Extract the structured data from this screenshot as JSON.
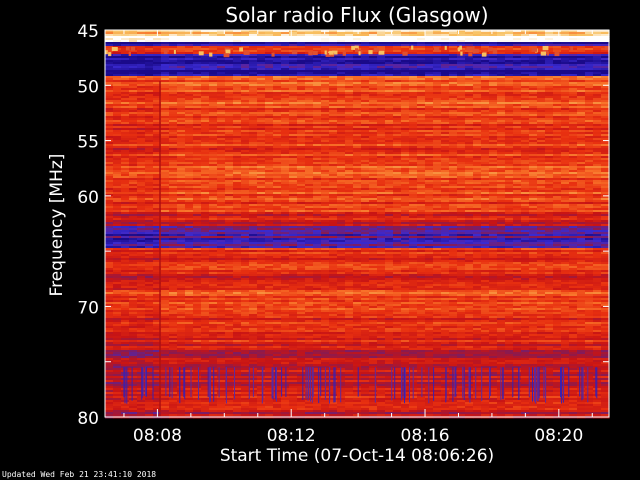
{
  "chart_data": {
    "type": "heatmap",
    "title": "Solar radio Flux (Glasgow)",
    "ylabel": "Frequency [MHz]",
    "xlabel": "Start Time (07-Oct-14 08:06:26)",
    "x_range_minutes": [
      "08:06:26",
      "08:21:30"
    ],
    "y_range_mhz": [
      45,
      80
    ],
    "y_ticks": [
      45,
      50,
      55,
      60,
      65,
      70,
      75,
      80
    ],
    "y_tick_labels": [
      "45",
      "50",
      "55",
      "60",
      "",
      "70",
      "",
      "80"
    ],
    "x_ticks": [
      "08:08",
      "08:12",
      "08:16",
      "08:20"
    ],
    "colormap": [
      "#1a0a8a",
      "#3a2ad0",
      "#8a1a50",
      "#c81414",
      "#e83010",
      "#f87028",
      "#f8c060",
      "#ffffff"
    ],
    "bands": [
      {
        "f0": 45.0,
        "f1": 45.6,
        "level": 0.88
      },
      {
        "f0": 45.6,
        "f1": 46.0,
        "level": 1.0
      },
      {
        "f0": 46.0,
        "f1": 46.4,
        "level": 0.05
      },
      {
        "f0": 46.4,
        "f1": 47.2,
        "level": 0.55
      },
      {
        "f0": 47.2,
        "f1": 48.4,
        "level": 0.08
      },
      {
        "f0": 48.4,
        "f1": 49.2,
        "level": 0.02
      },
      {
        "f0": 49.2,
        "f1": 49.6,
        "level": 0.75
      },
      {
        "f0": 49.6,
        "f1": 52.0,
        "level": 0.62
      },
      {
        "f0": 52.0,
        "f1": 56.0,
        "level": 0.58
      },
      {
        "f0": 56.0,
        "f1": 59.0,
        "level": 0.64
      },
      {
        "f0": 59.0,
        "f1": 61.5,
        "level": 0.6
      },
      {
        "f0": 61.5,
        "f1": 62.8,
        "level": 0.45
      },
      {
        "f0": 62.8,
        "f1": 64.8,
        "level": 0.18
      },
      {
        "f0": 64.8,
        "f1": 66.5,
        "level": 0.55
      },
      {
        "f0": 66.5,
        "f1": 68.5,
        "level": 0.5
      },
      {
        "f0": 68.5,
        "f1": 71.0,
        "level": 0.62
      },
      {
        "f0": 71.0,
        "f1": 74.0,
        "level": 0.52
      },
      {
        "f0": 74.0,
        "f1": 77.5,
        "level": 0.42
      },
      {
        "f0": 77.5,
        "f1": 79.5,
        "level": 0.5
      },
      {
        "f0": 79.5,
        "f1": 80.0,
        "level": 0.4
      }
    ]
  },
  "footer": {
    "updated": "Updated Wed Feb 21 23:41:10 2018"
  }
}
